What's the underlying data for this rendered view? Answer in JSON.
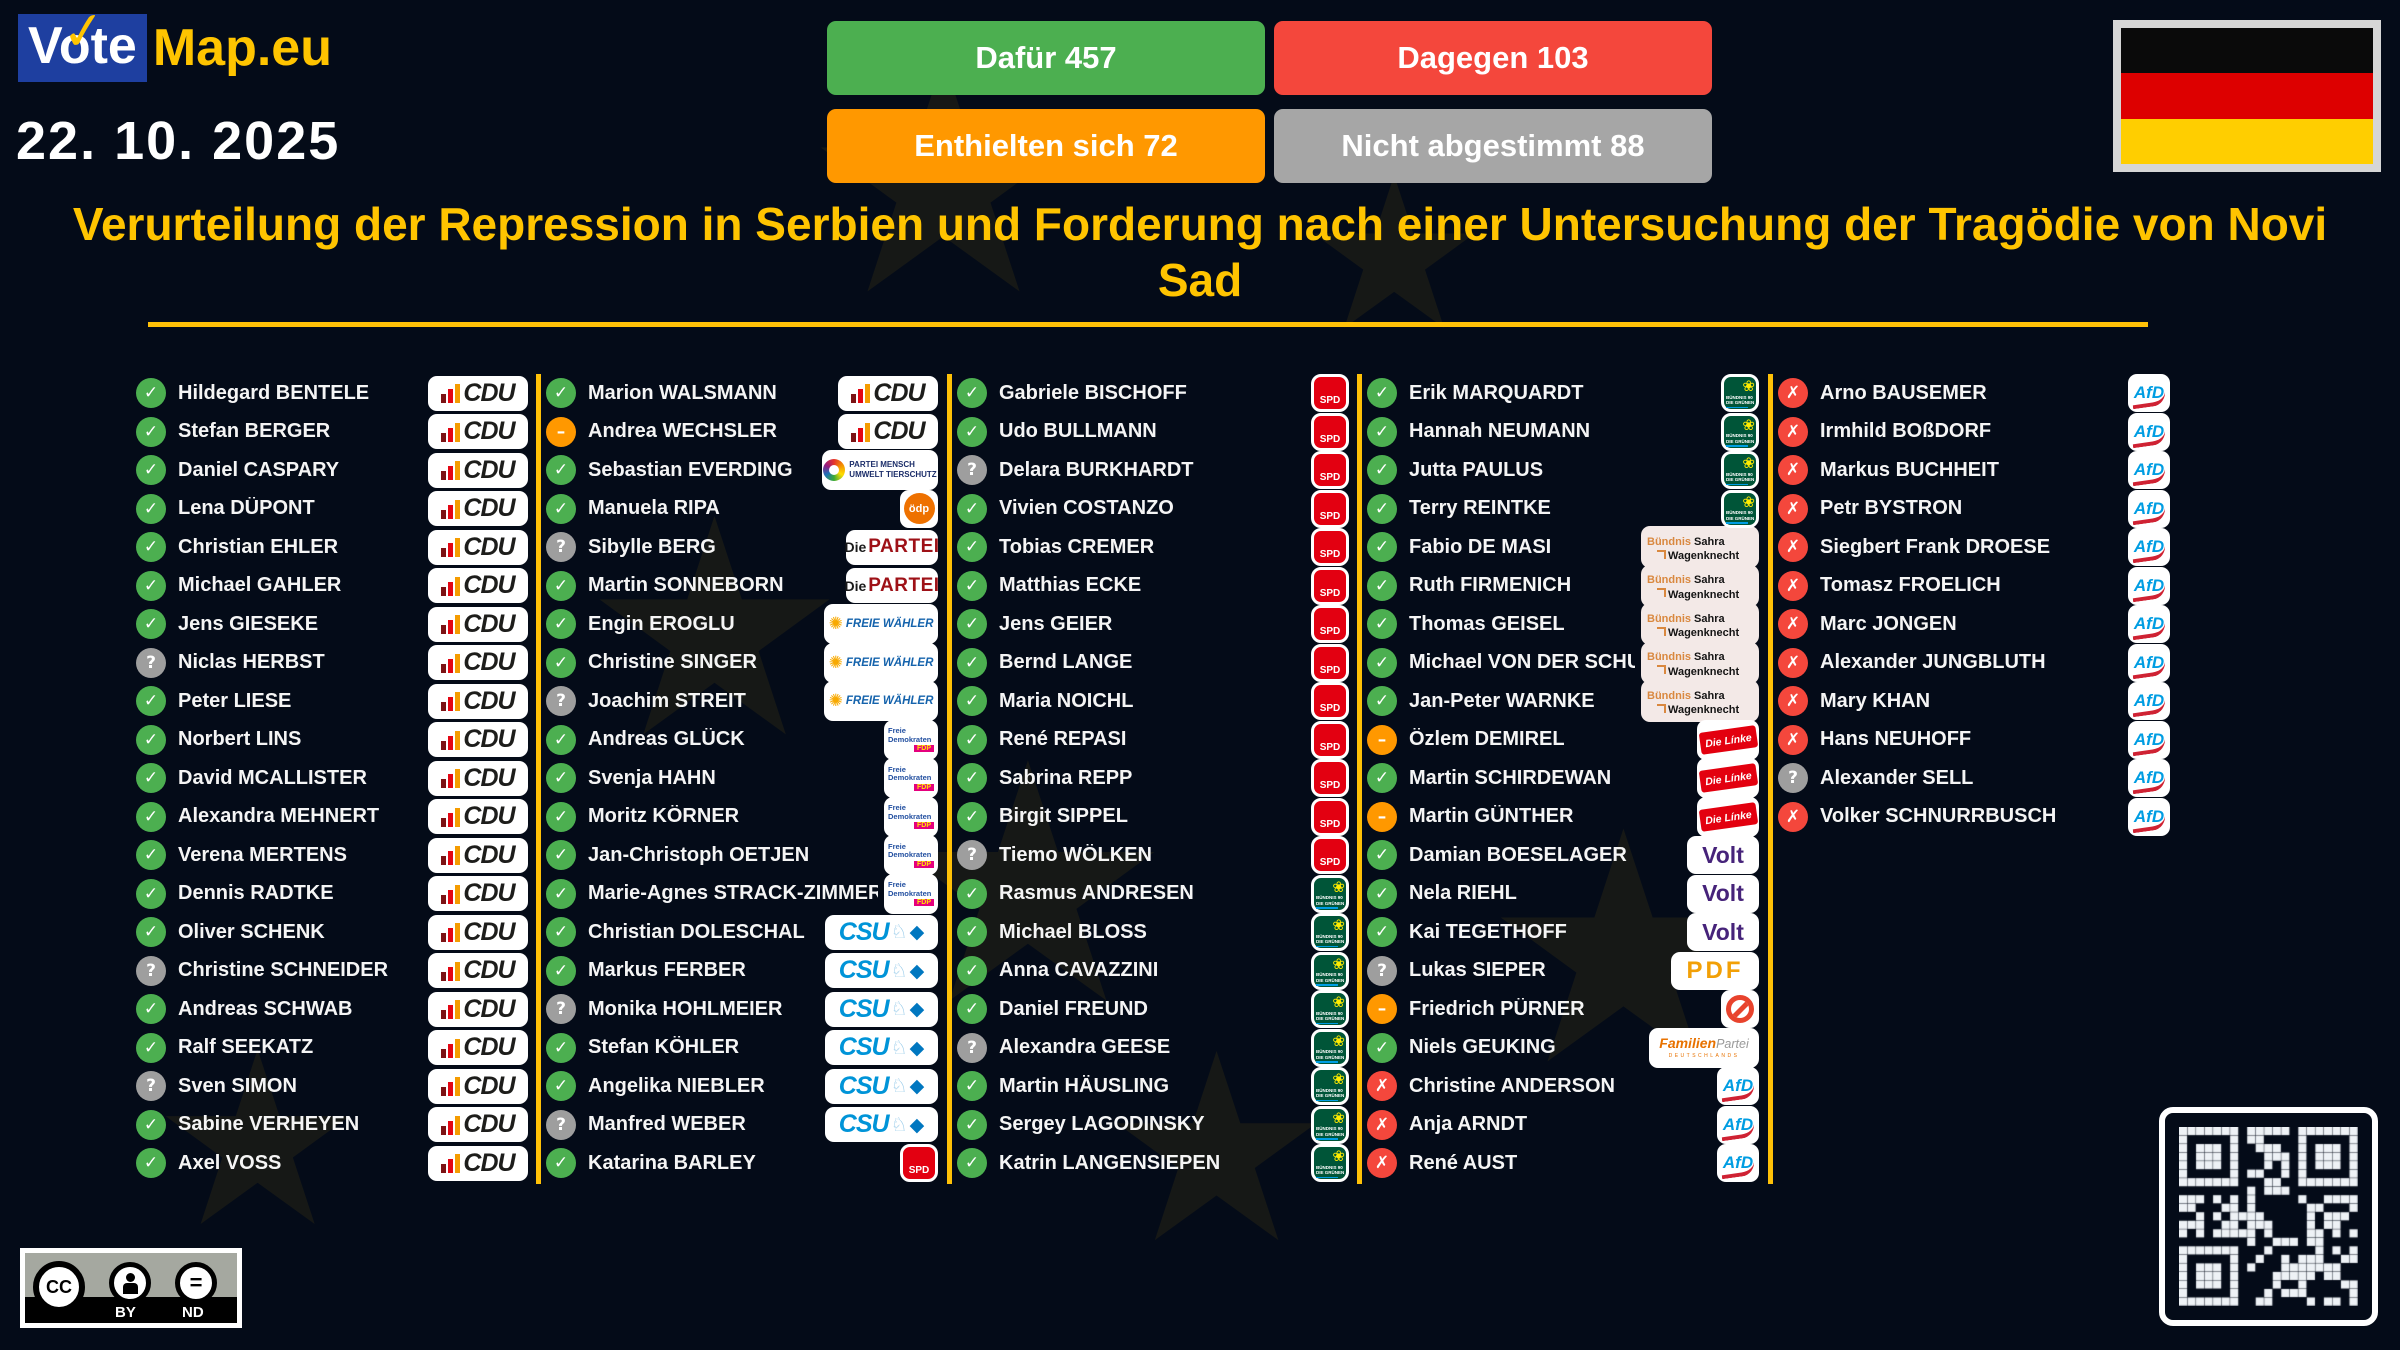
{
  "header": {
    "logo_vote": "Vote",
    "logo_map": "Map.eu",
    "date": "22. 10. 2025",
    "title": "Verurteilung der Repression in Serbien und Forderung nach einer Untersuchung der Tragödie von Novi Sad",
    "counts": [
      {
        "id": "for",
        "label": "Dafür",
        "value": 457,
        "color": "#4caf50"
      },
      {
        "id": "against",
        "label": "Dagegen",
        "value": 103,
        "color": "#f4473c"
      },
      {
        "id": "abstain",
        "label": "Enthielten sich",
        "value": 72,
        "color": "#ff9800"
      },
      {
        "id": "not_voted",
        "label": "Nicht abgestimmt",
        "value": 88,
        "color": "#a6a6a6"
      }
    ],
    "flag": "germany-flag"
  },
  "vote_styles": {
    "yes": {
      "glyph": "✓",
      "color": "#4caf50"
    },
    "no": {
      "glyph": "✗",
      "color": "#f4473c"
    },
    "abstain": {
      "glyph": "–",
      "color": "#ff9800"
    },
    "none": {
      "glyph": "?",
      "color": "#9e9e9e"
    }
  },
  "parties": {
    "cdu": {
      "name": "CDU"
    },
    "csu": {
      "name": "CSU"
    },
    "spd": {
      "name": "SPD"
    },
    "gruene": {
      "name": "BÜNDNIS 90 DIE GRÜNEN",
      "line1": "BÜNDNIS 90",
      "line2": "DIE GRÜNEN"
    },
    "fdp": {
      "name": "Freie Demokraten FDP",
      "line1": "Freie",
      "line2": "Demokraten",
      "tag": "FDP"
    },
    "tierschutz": {
      "name": "PARTEI MENSCH UMWELT TIERSCHUTZ",
      "line1": "PARTEI MENSCH",
      "line2": "UMWELT TIERSCHUTZ"
    },
    "oedp": {
      "name": "ödp"
    },
    "partei": {
      "name": "Die PARTEI",
      "prefix": "Die",
      "main": "PARTEI"
    },
    "fw": {
      "name": "FREIE WÄHLER"
    },
    "bsw": {
      "name": "Bündnis Sahra Wagenknecht",
      "word1": "Bündnis",
      "word2": "Sahra",
      "word3": "Wagenknecht"
    },
    "linke": {
      "name": "Die Línke"
    },
    "volt": {
      "name": "Volt"
    },
    "pdf": {
      "name": "PDF"
    },
    "indep": {
      "name": "",
      "icon": "prohibition-icon"
    },
    "familie": {
      "name": "FamilienPartei DEUTSCHLANDS",
      "word1": "Familien",
      "word2": "Partei",
      "sub": "DEUTSCHLANDS"
    },
    "afd": {
      "name": "AfD"
    }
  },
  "columns": [
    [
      {
        "name": "Hildegard BENTELE",
        "vote": "yes",
        "party": "cdu"
      },
      {
        "name": "Stefan BERGER",
        "vote": "yes",
        "party": "cdu"
      },
      {
        "name": "Daniel CASPARY",
        "vote": "yes",
        "party": "cdu"
      },
      {
        "name": "Lena DÜPONT",
        "vote": "yes",
        "party": "cdu"
      },
      {
        "name": "Christian EHLER",
        "vote": "yes",
        "party": "cdu"
      },
      {
        "name": "Michael GAHLER",
        "vote": "yes",
        "party": "cdu"
      },
      {
        "name": "Jens GIESEKE",
        "vote": "yes",
        "party": "cdu"
      },
      {
        "name": "Niclas HERBST",
        "vote": "none",
        "party": "cdu"
      },
      {
        "name": "Peter LIESE",
        "vote": "yes",
        "party": "cdu"
      },
      {
        "name": "Norbert LINS",
        "vote": "yes",
        "party": "cdu"
      },
      {
        "name": "David MCALLISTER",
        "vote": "yes",
        "party": "cdu"
      },
      {
        "name": "Alexandra MEHNERT",
        "vote": "yes",
        "party": "cdu"
      },
      {
        "name": "Verena MERTENS",
        "vote": "yes",
        "party": "cdu"
      },
      {
        "name": "Dennis RADTKE",
        "vote": "yes",
        "party": "cdu"
      },
      {
        "name": "Oliver SCHENK",
        "vote": "yes",
        "party": "cdu"
      },
      {
        "name": "Christine SCHNEIDER",
        "vote": "none",
        "party": "cdu"
      },
      {
        "name": "Andreas SCHWAB",
        "vote": "yes",
        "party": "cdu"
      },
      {
        "name": "Ralf SEEKATZ",
        "vote": "yes",
        "party": "cdu"
      },
      {
        "name": "Sven SIMON",
        "vote": "none",
        "party": "cdu"
      },
      {
        "name": "Sabine VERHEYEN",
        "vote": "yes",
        "party": "cdu"
      },
      {
        "name": "Axel VOSS",
        "vote": "yes",
        "party": "cdu"
      }
    ],
    [
      {
        "name": "Marion WALSMANN",
        "vote": "yes",
        "party": "cdu"
      },
      {
        "name": "Andrea WECHSLER",
        "vote": "abstain",
        "party": "cdu"
      },
      {
        "name": "Sebastian EVERDING",
        "vote": "yes",
        "party": "tierschutz"
      },
      {
        "name": "Manuela RIPA",
        "vote": "yes",
        "party": "oedp"
      },
      {
        "name": "Sibylle BERG",
        "vote": "none",
        "party": "partei"
      },
      {
        "name": "Martin SONNEBORN",
        "vote": "yes",
        "party": "partei"
      },
      {
        "name": "Engin EROGLU",
        "vote": "yes",
        "party": "fw"
      },
      {
        "name": "Christine SINGER",
        "vote": "yes",
        "party": "fw"
      },
      {
        "name": "Joachim STREIT",
        "vote": "none",
        "party": "fw"
      },
      {
        "name": "Andreas GLÜCK",
        "vote": "yes",
        "party": "fdp"
      },
      {
        "name": "Svenja HAHN",
        "vote": "yes",
        "party": "fdp"
      },
      {
        "name": "Moritz KÖRNER",
        "vote": "yes",
        "party": "fdp"
      },
      {
        "name": "Jan-Christoph OETJEN",
        "vote": "yes",
        "party": "fdp"
      },
      {
        "name": "Marie-Agnes STRACK-ZIMMERMANN",
        "vote": "yes",
        "party": "fdp"
      },
      {
        "name": "Christian DOLESCHAL",
        "vote": "yes",
        "party": "csu"
      },
      {
        "name": "Markus FERBER",
        "vote": "yes",
        "party": "csu"
      },
      {
        "name": "Monika HOHLMEIER",
        "vote": "none",
        "party": "csu"
      },
      {
        "name": "Stefan KÖHLER",
        "vote": "yes",
        "party": "csu"
      },
      {
        "name": "Angelika NIEBLER",
        "vote": "yes",
        "party": "csu"
      },
      {
        "name": "Manfred WEBER",
        "vote": "none",
        "party": "csu"
      },
      {
        "name": "Katarina BARLEY",
        "vote": "yes",
        "party": "spd"
      }
    ],
    [
      {
        "name": "Gabriele BISCHOFF",
        "vote": "yes",
        "party": "spd"
      },
      {
        "name": "Udo BULLMANN",
        "vote": "yes",
        "party": "spd"
      },
      {
        "name": "Delara BURKHARDT",
        "vote": "none",
        "party": "spd"
      },
      {
        "name": "Vivien COSTANZO",
        "vote": "yes",
        "party": "spd"
      },
      {
        "name": "Tobias CREMER",
        "vote": "yes",
        "party": "spd"
      },
      {
        "name": "Matthias ECKE",
        "vote": "yes",
        "party": "spd"
      },
      {
        "name": "Jens GEIER",
        "vote": "yes",
        "party": "spd"
      },
      {
        "name": "Bernd LANGE",
        "vote": "yes",
        "party": "spd"
      },
      {
        "name": "Maria NOICHL",
        "vote": "yes",
        "party": "spd"
      },
      {
        "name": "René REPASI",
        "vote": "yes",
        "party": "spd"
      },
      {
        "name": "Sabrina REPP",
        "vote": "yes",
        "party": "spd"
      },
      {
        "name": "Birgit SIPPEL",
        "vote": "yes",
        "party": "spd"
      },
      {
        "name": "Tiemo WÖLKEN",
        "vote": "none",
        "party": "spd"
      },
      {
        "name": "Rasmus ANDRESEN",
        "vote": "yes",
        "party": "gruene"
      },
      {
        "name": "Michael BLOSS",
        "vote": "yes",
        "party": "gruene"
      },
      {
        "name": "Anna CAVAZZINI",
        "vote": "yes",
        "party": "gruene"
      },
      {
        "name": "Daniel FREUND",
        "vote": "yes",
        "party": "gruene"
      },
      {
        "name": "Alexandra GEESE",
        "vote": "none",
        "party": "gruene"
      },
      {
        "name": "Martin HÄUSLING",
        "vote": "yes",
        "party": "gruene"
      },
      {
        "name": "Sergey LAGODINSKY",
        "vote": "yes",
        "party": "gruene"
      },
      {
        "name": "Katrin LANGENSIEPEN",
        "vote": "yes",
        "party": "gruene"
      }
    ],
    [
      {
        "name": "Erik MARQUARDT",
        "vote": "yes",
        "party": "gruene"
      },
      {
        "name": "Hannah NEUMANN",
        "vote": "yes",
        "party": "gruene"
      },
      {
        "name": "Jutta PAULUS",
        "vote": "yes",
        "party": "gruene"
      },
      {
        "name": "Terry REINTKE",
        "vote": "yes",
        "party": "gruene"
      },
      {
        "name": "Fabio DE MASI",
        "vote": "yes",
        "party": "bsw"
      },
      {
        "name": "Ruth FIRMENICH",
        "vote": "yes",
        "party": "bsw"
      },
      {
        "name": "Thomas GEISEL",
        "vote": "yes",
        "party": "bsw"
      },
      {
        "name": "Michael VON DER SCHULENBURG",
        "vote": "yes",
        "party": "bsw"
      },
      {
        "name": "Jan-Peter WARNKE",
        "vote": "yes",
        "party": "bsw"
      },
      {
        "name": "Özlem DEMIREL",
        "vote": "abstain",
        "party": "linke"
      },
      {
        "name": "Martin SCHIRDEWAN",
        "vote": "yes",
        "party": "linke"
      },
      {
        "name": "Martin GÜNTHER",
        "vote": "abstain",
        "party": "linke"
      },
      {
        "name": "Damian BOESELAGER",
        "vote": "yes",
        "party": "volt"
      },
      {
        "name": "Nela RIEHL",
        "vote": "yes",
        "party": "volt"
      },
      {
        "name": "Kai TEGETHOFF",
        "vote": "yes",
        "party": "volt"
      },
      {
        "name": "Lukas SIEPER",
        "vote": "none",
        "party": "pdf"
      },
      {
        "name": "Friedrich PÜRNER",
        "vote": "abstain",
        "party": "indep"
      },
      {
        "name": "Niels GEUKING",
        "vote": "yes",
        "party": "familie"
      },
      {
        "name": "Christine ANDERSON",
        "vote": "no",
        "party": "afd"
      },
      {
        "name": "Anja ARNDT",
        "vote": "no",
        "party": "afd"
      },
      {
        "name": "René AUST",
        "vote": "no",
        "party": "afd"
      }
    ],
    [
      {
        "name": "Arno BAUSEMER",
        "vote": "no",
        "party": "afd"
      },
      {
        "name": "Irmhild BOßDORF",
        "vote": "no",
        "party": "afd"
      },
      {
        "name": "Markus BUCHHEIT",
        "vote": "no",
        "party": "afd"
      },
      {
        "name": "Petr BYSTRON",
        "vote": "no",
        "party": "afd"
      },
      {
        "name": "Siegbert Frank DROESE",
        "vote": "no",
        "party": "afd"
      },
      {
        "name": "Tomasz FROELICH",
        "vote": "no",
        "party": "afd"
      },
      {
        "name": "Marc JONGEN",
        "vote": "no",
        "party": "afd"
      },
      {
        "name": "Alexander JUNGBLUTH",
        "vote": "no",
        "party": "afd"
      },
      {
        "name": "Mary KHAN",
        "vote": "no",
        "party": "afd"
      },
      {
        "name": "Hans NEUHOFF",
        "vote": "no",
        "party": "afd"
      },
      {
        "name": "Alexander SELL",
        "vote": "none",
        "party": "afd"
      },
      {
        "name": "Volker SCHNURRBUSCH",
        "vote": "no",
        "party": "afd"
      }
    ]
  ],
  "footer": {
    "license": {
      "cc": "CC",
      "by": "BY",
      "nd": "ND"
    }
  },
  "colors": {
    "background": "#040b18",
    "accent_yellow": "#ffc107",
    "title_yellow": "#ffc400"
  }
}
